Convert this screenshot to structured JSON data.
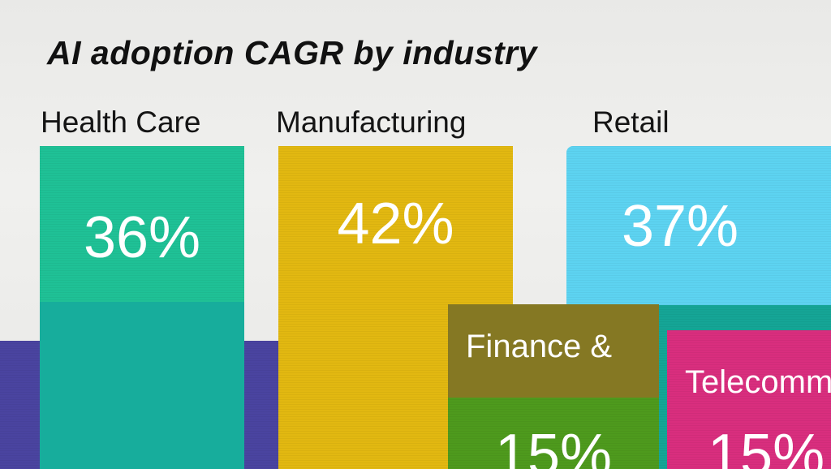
{
  "chart_data": {
    "type": "bar",
    "title": "AI adoption CAGR by industry",
    "categories": [
      "Health Care",
      "Manufacturing",
      "Retail",
      "Finance &",
      "Telecomm"
    ],
    "values": [
      36,
      42,
      37,
      15,
      15
    ],
    "value_labels": [
      "36%",
      "42%",
      "37%",
      "15%",
      "15%"
    ],
    "unit": "%",
    "grid": false,
    "colors": {
      "Health Care": "#1fc196",
      "Manufacturing": "#e2b811",
      "Retail": "#5dd3f1",
      "Finance &": "#4e9a1d",
      "Telecomm": "#d92e7e",
      "background_band_purple": "#4a44a0",
      "background_band_teal": "#15a596",
      "finance_header": "#857823"
    }
  }
}
